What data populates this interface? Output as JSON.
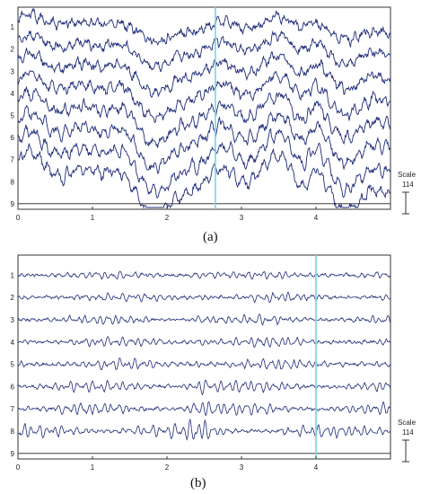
{
  "chart_data": [
    {
      "type": "line",
      "caption": "(a)",
      "channels": [
        "1",
        "2",
        "3",
        "4",
        "5",
        "6",
        "7",
        "8",
        "9"
      ],
      "xlim": [
        0,
        5
      ],
      "x_ticks": [
        "0",
        "1",
        "2",
        "3",
        "4"
      ],
      "x_tick_values": [
        0,
        1,
        2,
        3,
        4
      ],
      "marker_x": 2.65,
      "marker_color": "#7fd6e6",
      "line_color": "#1e2a78",
      "scale_label": "Scale",
      "scale_value": "114",
      "style": "raw",
      "seed": 11
    },
    {
      "type": "line",
      "caption": "(b)",
      "channels": [
        "1",
        "2",
        "3",
        "4",
        "5",
        "6",
        "7",
        "8",
        "9"
      ],
      "xlim": [
        0,
        5
      ],
      "x_ticks": [
        "0",
        "1",
        "2",
        "3",
        "4"
      ],
      "x_tick_values": [
        0,
        1,
        2,
        3,
        4
      ],
      "marker_x": 4.0,
      "marker_color": "#7fd6e6",
      "line_color": "#1e2a78",
      "scale_label": "Scale",
      "scale_value": "114",
      "style": "filtered",
      "seed": 29
    }
  ]
}
